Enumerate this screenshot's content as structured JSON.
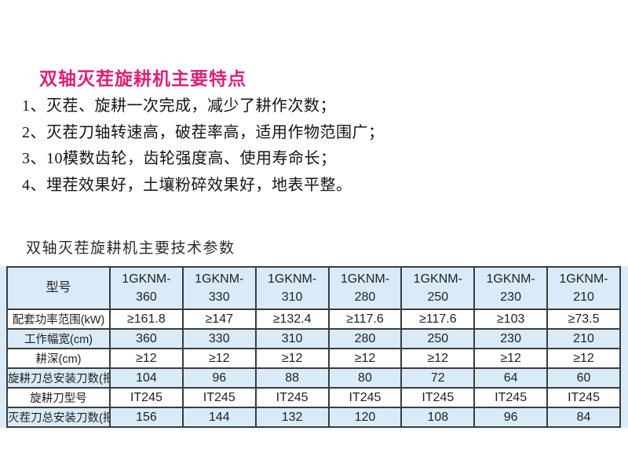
{
  "page": {
    "features_title": "双轴灭茬旋耕机主要特点",
    "features": [
      "1、灭茬、旋耕一次完成，减少了耕作次数；",
      "2、灭茬刀轴转速高，破茬率高，适用作物范围广；",
      "3、10模数齿轮，齿轮强度高、使用寿命长；",
      "4、埋茬效果好，土壤粉碎效果好，地表平整。"
    ],
    "specs_title": "双轴灭茬旋耕机主要技术参数"
  },
  "table": {
    "header_label": "型号",
    "model_prefix": "1GKNM-",
    "models": [
      "360",
      "330",
      "310",
      "280",
      "250",
      "230",
      "210"
    ],
    "rows": [
      {
        "label": "配套功率范围(kW)",
        "values": [
          "≥161.8",
          "≥147",
          "≥132.4",
          "≥117.6",
          "≥117.6",
          "≥103",
          "≥73.5"
        ]
      },
      {
        "label": "工作幅宽(cm)",
        "values": [
          "360",
          "330",
          "310",
          "280",
          "250",
          "230",
          "210"
        ]
      },
      {
        "label": "耕深(cm)",
        "values": [
          "≥12",
          "≥12",
          "≥12",
          "≥12",
          "≥12",
          "≥12",
          "≥12"
        ]
      },
      {
        "label": "旋耕刀总安装刀数(把)",
        "values": [
          "104",
          "96",
          "88",
          "80",
          "72",
          "64",
          "60"
        ]
      },
      {
        "label": "旋耕刀型号",
        "values": [
          "IT245",
          "IT245",
          "IT245",
          "IT245",
          "IT245",
          "IT245",
          "IT245"
        ]
      },
      {
        "label": "灭茬刀总安装刀数(把)",
        "values": [
          "156",
          "144",
          "132",
          "120",
          "108",
          "96",
          "84"
        ]
      }
    ]
  },
  "colors": {
    "accent_pink": "#e02078",
    "table_blue": "#d9ebf8",
    "table_border": "#3c3c3c"
  }
}
